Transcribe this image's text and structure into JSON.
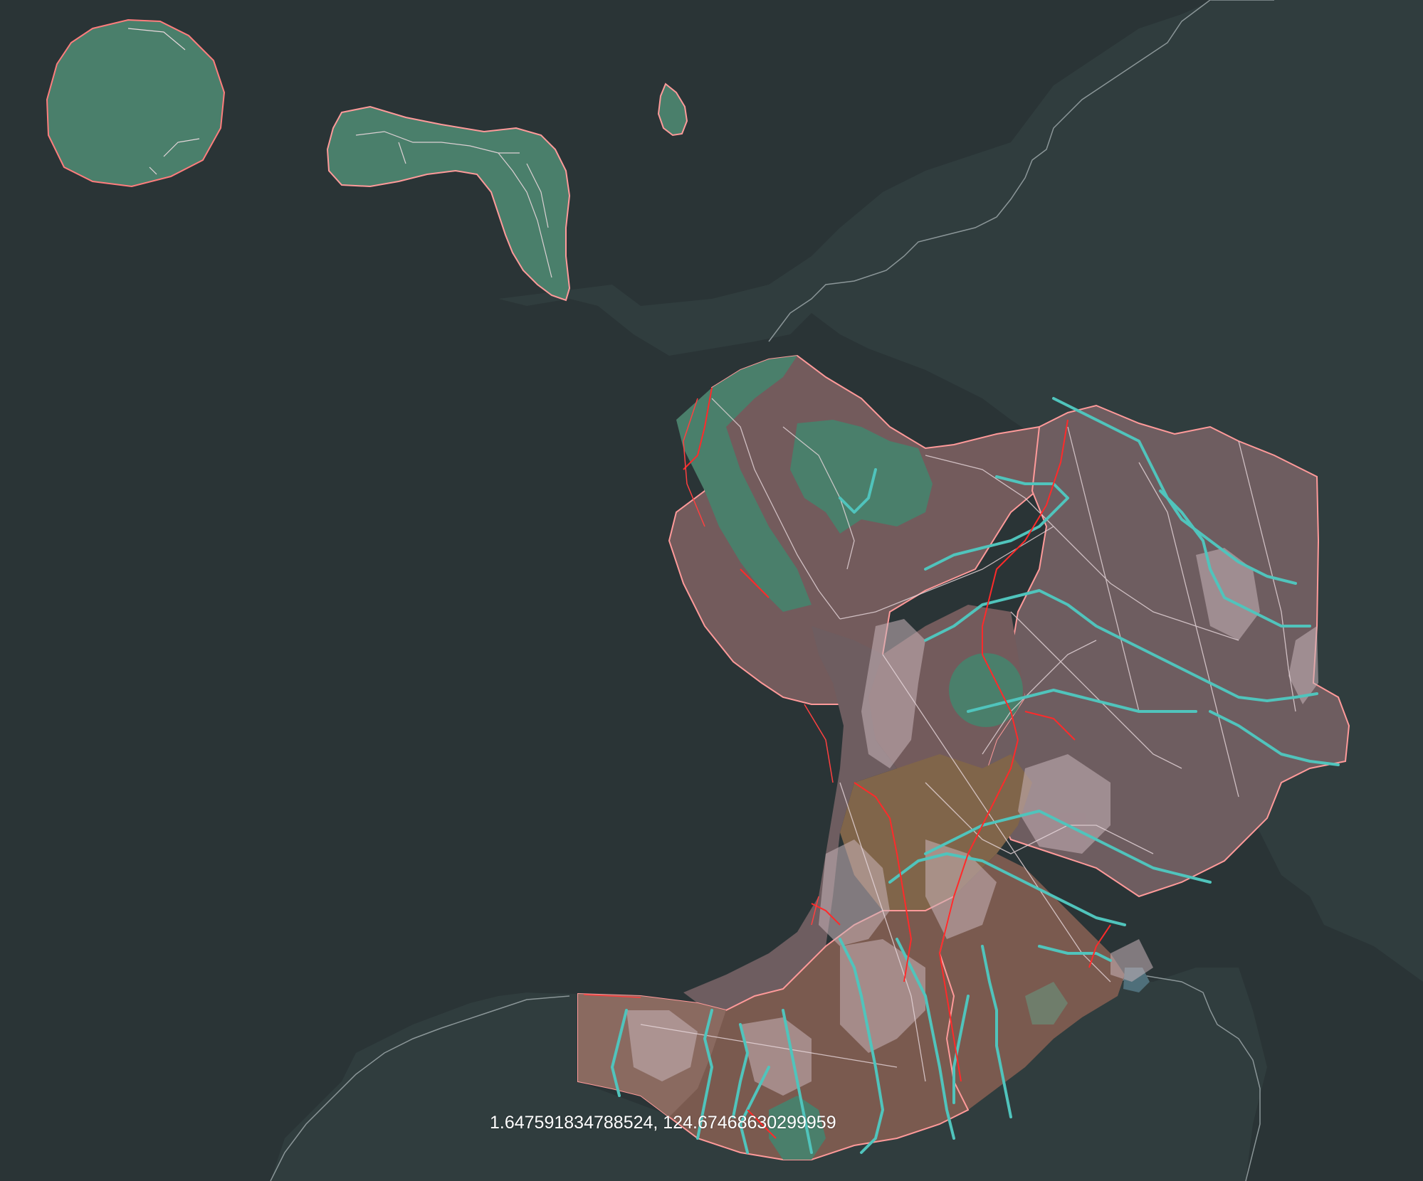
{
  "map": {
    "coordinate_readout": "1.647591834788524, 124.67468630299959"
  },
  "colors": {
    "sea": "#2a3436",
    "neighbor_land": "#303d3e",
    "forest": "#4a7f6b",
    "district_mauve": "#735b5c",
    "district_grey": "#6e5d60",
    "district_orange": "#80654a",
    "district_brown": "#7a5a4f",
    "river": "#50c4bc",
    "admin_boundary": "#ff2a2a",
    "road": "#e8d8dc",
    "coast_outline": "#ff8a8a",
    "urban": "#c9b4ba"
  },
  "icons": {
    "map": "map-icon"
  }
}
